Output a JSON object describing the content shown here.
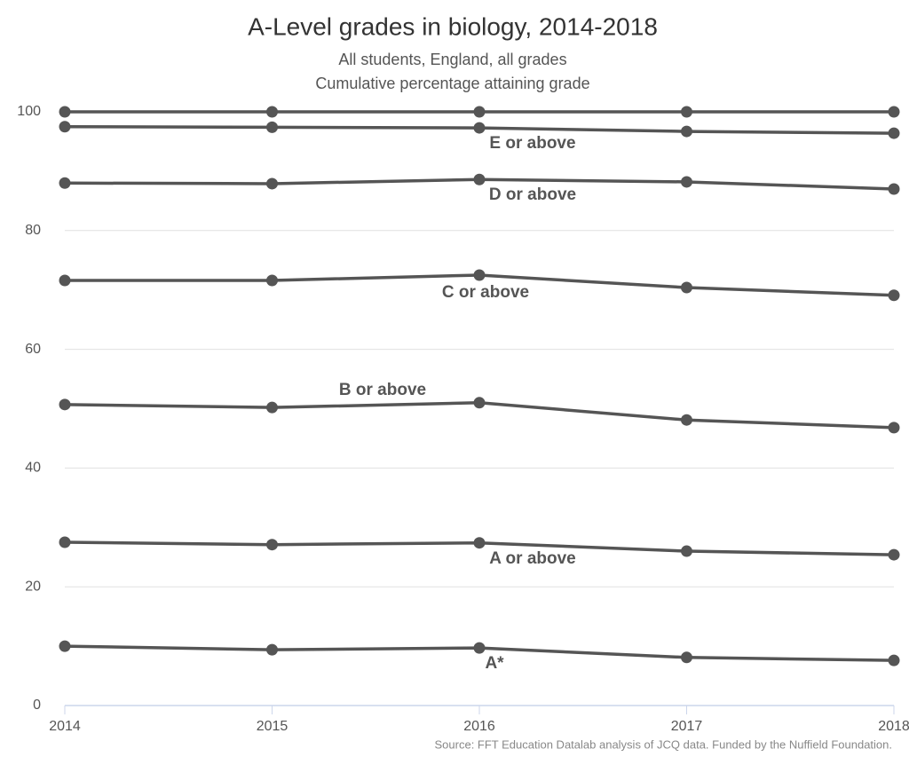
{
  "chart_data": {
    "type": "line",
    "title": "A-Level grades in biology, 2014-2018",
    "subtitle": [
      "All students, England, all grades",
      "Cumulative percentage attaining grade"
    ],
    "source": "Source: FFT Education Datalab analysis of JCQ data. Funded by the Nuffield Foundation.",
    "x": [
      2014,
      2015,
      2016,
      2017,
      2018
    ],
    "xlim": [
      2014,
      2018
    ],
    "xticks": [
      2014,
      2015,
      2016,
      2017,
      2018
    ],
    "ylim": [
      0,
      100
    ],
    "yticks": [
      0,
      20,
      40,
      60,
      80,
      100
    ],
    "grid": true,
    "series": [
      {
        "color": "#555555",
        "values": [
          100,
          100,
          100,
          100,
          100
        ]
      },
      {
        "name": "E or above",
        "color": "#555555",
        "values": [
          97.5,
          97.4,
          97.3,
          96.7,
          96.4
        ]
      },
      {
        "name": "D or above",
        "color": "#555555",
        "values": [
          88.0,
          87.9,
          88.6,
          88.2,
          87.0
        ]
      },
      {
        "name": "C or above",
        "color": "#555555",
        "values": [
          71.6,
          71.6,
          72.5,
          70.4,
          69.1
        ]
      },
      {
        "name": "B or above",
        "color": "#555555",
        "values": [
          50.7,
          50.2,
          51.0,
          48.1,
          46.8
        ]
      },
      {
        "name": "A or above",
        "color": "#555555",
        "values": [
          27.5,
          27.1,
          27.4,
          26.0,
          25.4
        ]
      },
      {
        "name": "A*",
        "color": "#555555",
        "values": [
          10.0,
          9.4,
          9.7,
          8.1,
          7.6
        ]
      }
    ]
  }
}
